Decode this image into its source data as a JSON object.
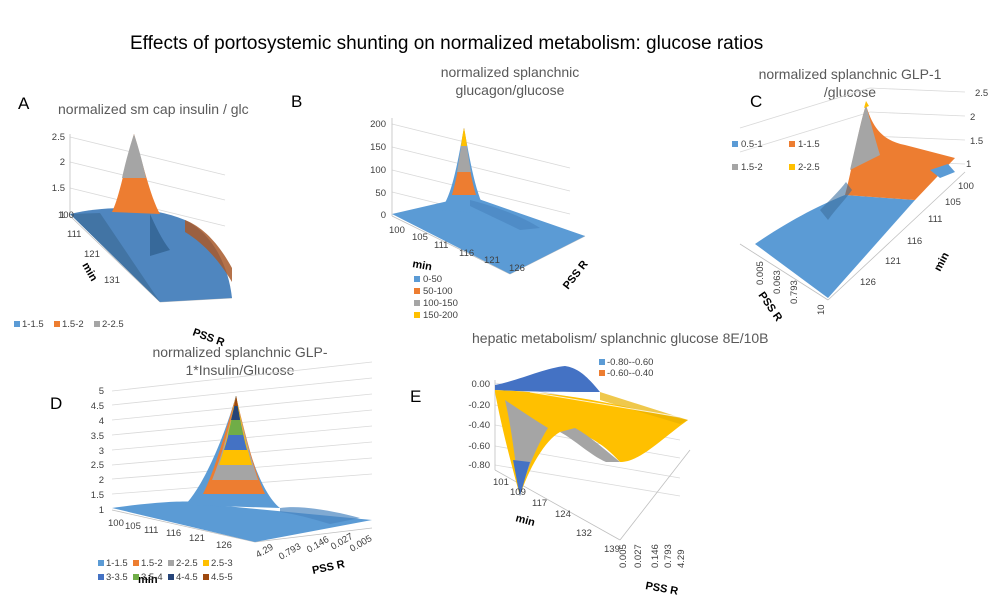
{
  "figure": {
    "title": "Effects of portosystemic shunting on normalized metabolism: glucose ratios"
  },
  "chart_data": [
    {
      "panel": "A",
      "type": "surface",
      "title": "normalized sm cap insulin / glc",
      "xlabel": "PSS R",
      "ylabel": "min",
      "z_ticks": [
        "2.5",
        "2",
        "1.5",
        "1"
      ],
      "min_ticks": [
        "100",
        "111",
        "121",
        "131"
      ],
      "pss_ticks": [],
      "zlim": [
        1,
        2.5
      ],
      "peak": {
        "min": 105,
        "z": 2.5
      },
      "legend": [
        {
          "name": "1-1.5",
          "color": "#5b9bd5"
        },
        {
          "name": "1.5-2",
          "color": "#ed7d31"
        },
        {
          "name": "2-2.5",
          "color": "#a5a5a5"
        }
      ]
    },
    {
      "panel": "B",
      "type": "surface",
      "title": "normalized splanchnic glucagon/glucose",
      "title_lines": [
        "normalized splanchnic",
        "glucagon/glucose"
      ],
      "xlabel": "PSS R",
      "ylabel": "min",
      "z_ticks": [
        "200",
        "150",
        "100",
        "50",
        "0"
      ],
      "min_ticks": [
        "100",
        "105",
        "111",
        "116",
        "121",
        "126"
      ],
      "pss_ticks": [],
      "zlim": [
        0,
        200
      ],
      "peak": {
        "min": 110,
        "z": 190
      },
      "legend": [
        {
          "name": "0-50",
          "color": "#5b9bd5"
        },
        {
          "name": "50-100",
          "color": "#ed7d31"
        },
        {
          "name": "100-150",
          "color": "#a5a5a5"
        },
        {
          "name": "150-200",
          "color": "#ffc000"
        }
      ]
    },
    {
      "panel": "C",
      "type": "surface",
      "title": "normalized splanchnic GLP-1 /glucose",
      "title_lines": [
        "normalized splanchnic GLP-1",
        "/glucose"
      ],
      "xlabel": "PSS R",
      "ylabel": "min",
      "z_ticks": [
        "2.5",
        "2",
        "1.5",
        "1"
      ],
      "min_ticks": [
        "100",
        "105",
        "111",
        "116",
        "121",
        "126"
      ],
      "pss_ticks": [
        "0.005",
        "0.063",
        "0.793",
        "10"
      ],
      "zlim": [
        0.5,
        2.5
      ],
      "legend": [
        {
          "name": "0.5-1",
          "color": "#5b9bd5"
        },
        {
          "name": "1-1.5",
          "color": "#ed7d31"
        },
        {
          "name": "1.5-2",
          "color": "#a5a5a5"
        },
        {
          "name": "2-2.5",
          "color": "#ffc000"
        }
      ]
    },
    {
      "panel": "D",
      "type": "surface",
      "title": "normalized splanchnic GLP-1*Insulin/Glucose",
      "title_lines": [
        "normalized splanchnic GLP-",
        "1*Insulin/Glucose"
      ],
      "xlabel": "PSS R",
      "ylabel": "min",
      "z_ticks": [
        "5",
        "4.5",
        "4",
        "3.5",
        "3",
        "2.5",
        "2",
        "1.5",
        "1"
      ],
      "min_ticks": [
        "100",
        "105",
        "111",
        "116",
        "121",
        "126"
      ],
      "pss_ticks": [
        "4.29",
        "0.793",
        "0.146",
        "0.027",
        "0.005"
      ],
      "zlim": [
        1,
        5
      ],
      "legend": [
        {
          "name": "1-1.5",
          "color": "#5b9bd5"
        },
        {
          "name": "1.5-2",
          "color": "#ed7d31"
        },
        {
          "name": "2-2.5",
          "color": "#a5a5a5"
        },
        {
          "name": "2.5-3",
          "color": "#ffc000"
        },
        {
          "name": "3-3.5",
          "color": "#4472c4"
        },
        {
          "name": "3.5-4",
          "color": "#70ad47"
        },
        {
          "name": "4-4.5",
          "color": "#264478"
        },
        {
          "name": "4.5-5",
          "color": "#9e480e"
        }
      ]
    },
    {
      "panel": "E",
      "type": "surface",
      "title": "hepatic metabolism/ splanchnic glucose 8E/10B",
      "xlabel": "PSS R",
      "ylabel": "min",
      "z_ticks": [
        "0.00",
        "-0.20",
        "-0.40",
        "-0.60",
        "-0.80"
      ],
      "min_ticks": [
        "101",
        "109",
        "117",
        "124",
        "132",
        "139"
      ],
      "pss_ticks": [
        "0.005",
        "0.027",
        "0.146",
        "0.793",
        "4.29"
      ],
      "zlim": [
        -0.8,
        0
      ],
      "legend": [
        {
          "name": "-0.80--0.60",
          "color": "#5b9bd5"
        },
        {
          "name": "-0.60--0.40",
          "color": "#ed7d31"
        }
      ]
    }
  ]
}
